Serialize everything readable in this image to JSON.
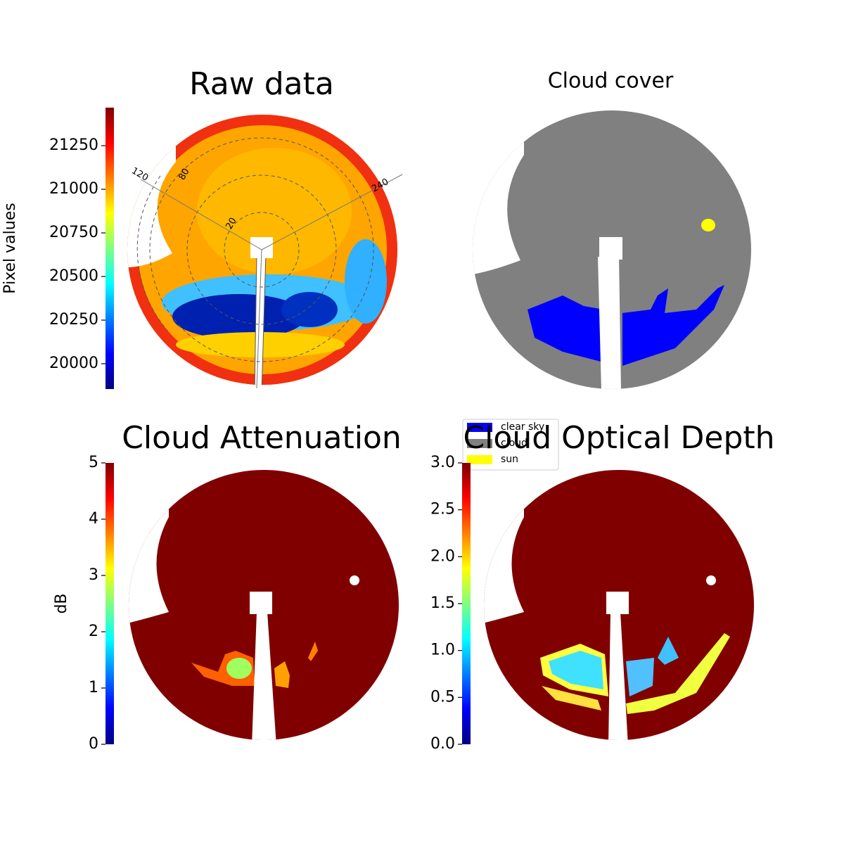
{
  "chart_data": [
    {
      "type": "image",
      "title": "Raw data",
      "colormap": "jet",
      "colorbar_label": "Pixel values",
      "clim": [
        19855,
        21468
      ],
      "cticks": [
        20000,
        20250,
        20500,
        20750,
        21000,
        21250
      ],
      "polar_labels": [
        "120",
        "240",
        "80",
        "20"
      ]
    },
    {
      "type": "image",
      "title": "Cloud cover",
      "legend": [
        {
          "name": "clear sky",
          "color": "#0000ff"
        },
        {
          "name": "cloud",
          "color": "#808080"
        },
        {
          "name": "sun",
          "color": "#ffff00"
        }
      ]
    },
    {
      "type": "image",
      "title": "Cloud Attenuation",
      "colormap": "jet",
      "colorbar_label": "dB",
      "clim": [
        0,
        5
      ],
      "cticks": [
        0,
        1,
        2,
        3,
        4,
        5
      ]
    },
    {
      "type": "image",
      "title": "Cloud Optical Depth",
      "colormap": "jet",
      "clim": [
        0,
        3
      ],
      "cticks": [
        {
          "value": 0,
          "label": "0.0"
        },
        {
          "value": 0.5,
          "label": "0.5"
        },
        {
          "value": 1,
          "label": "1.0"
        },
        {
          "value": 1.5,
          "label": "1.5"
        },
        {
          "value": 2,
          "label": "2.0"
        },
        {
          "value": 2.5,
          "label": "2.5"
        },
        {
          "value": 3,
          "label": "3.0"
        }
      ]
    }
  ]
}
